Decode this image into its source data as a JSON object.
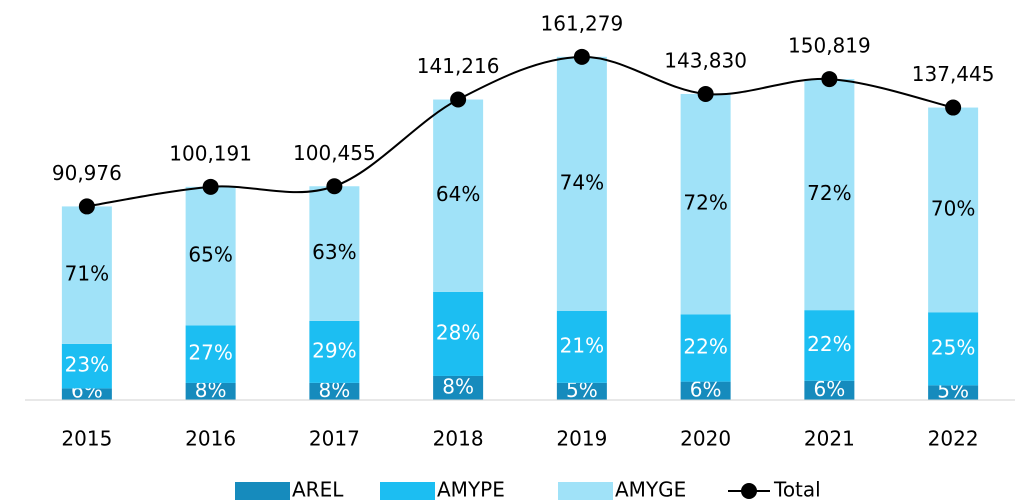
{
  "chart_data": {
    "type": "bar",
    "categories": [
      "2015",
      "2016",
      "2017",
      "2018",
      "2019",
      "2020",
      "2021",
      "2022"
    ],
    "ylim": [
      0,
      180000
    ],
    "legend": "bottom",
    "series": [
      {
        "name": "AREL",
        "color": "#168bbd",
        "label_color": "#ffffff",
        "values": [
          6,
          8,
          8,
          8,
          5,
          6,
          6,
          5
        ],
        "value_labels": [
          "6%",
          "8%",
          "8%",
          "8%",
          "5%",
          "6%",
          "6%",
          "5%"
        ]
      },
      {
        "name": "AMYPE",
        "color": "#1cbef2",
        "label_color": "#ffffff",
        "values": [
          23,
          27,
          29,
          28,
          21,
          22,
          22,
          25
        ],
        "value_labels": [
          "23%",
          "27%",
          "29%",
          "28%",
          "21%",
          "22%",
          "22%",
          "25%"
        ]
      },
      {
        "name": "AMYGE",
        "color": "#a0e2f8",
        "label_color": "#000000",
        "values": [
          71,
          65,
          63,
          64,
          74,
          72,
          72,
          70
        ],
        "value_labels": [
          "71%",
          "65%",
          "63%",
          "64%",
          "74%",
          "72%",
          "72%",
          "70%"
        ]
      },
      {
        "name": "Total",
        "type": "line",
        "color": "#000000",
        "values": [
          90976,
          100191,
          100455,
          141216,
          161279,
          143830,
          150819,
          137445
        ],
        "value_labels": [
          "90,976",
          "100,191",
          "100,455",
          "141,216",
          "161,279",
          "143,830",
          "150,819",
          "137,445"
        ]
      }
    ]
  }
}
